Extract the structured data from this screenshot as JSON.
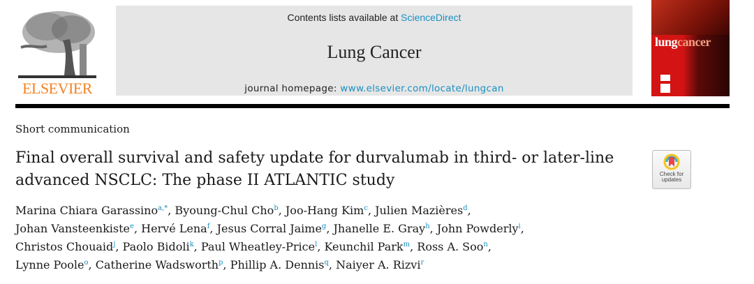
{
  "header": {
    "publisher": "ELSEVIER",
    "contents_prefix": "Contents lists available at ",
    "contents_link": "ScienceDirect",
    "journal_title": "Lung Cancer",
    "homepage_prefix": "journal homepage: ",
    "homepage_link": "www.elsevier.com/locate/lungcan",
    "cover_title_a": "lung",
    "cover_title_b": "cancer"
  },
  "article": {
    "section": "Short communication",
    "title": "Final overall survival and safety update for durvalumab in third- or later-line advanced NSCLC: The phase II ATLANTIC study",
    "check_updates_line1": "Check for",
    "check_updates_line2": "updates",
    "author_lines": [
      [
        {
          "name": "Marina Chiara Garassino",
          "sup": "a,*"
        },
        {
          "name": "Byoung-Chul Cho",
          "sup": "b"
        },
        {
          "name": "Joo-Hang Kim",
          "sup": "c"
        },
        {
          "name": "Julien Mazières",
          "sup": "d"
        }
      ],
      [
        {
          "name": "Johan Vansteenkiste",
          "sup": "e"
        },
        {
          "name": "Hervé Lena",
          "sup": "f"
        },
        {
          "name": "Jesus Corral Jaime",
          "sup": "g"
        },
        {
          "name": "Jhanelle E. Gray",
          "sup": "h"
        },
        {
          "name": "John Powderly",
          "sup": "i"
        }
      ],
      [
        {
          "name": "Christos Chouaid",
          "sup": "j"
        },
        {
          "name": "Paolo Bidoli",
          "sup": "k"
        },
        {
          "name": "Paul Wheatley-Price",
          "sup": "l"
        },
        {
          "name": "Keunchil Park",
          "sup": "m"
        },
        {
          "name": "Ross A. Soo",
          "sup": "n"
        }
      ],
      [
        {
          "name": "Lynne Poole",
          "sup": "o"
        },
        {
          "name": "Catherine Wadsworth",
          "sup": "p"
        },
        {
          "name": "Phillip A. Dennis",
          "sup": "q"
        },
        {
          "name": "Naiyer A. Rizvi",
          "sup": "r"
        }
      ]
    ]
  },
  "colors": {
    "link": "#1a8fc1",
    "elsevier_orange": "#f58220",
    "masthead_gray": "#e6e6e6"
  }
}
